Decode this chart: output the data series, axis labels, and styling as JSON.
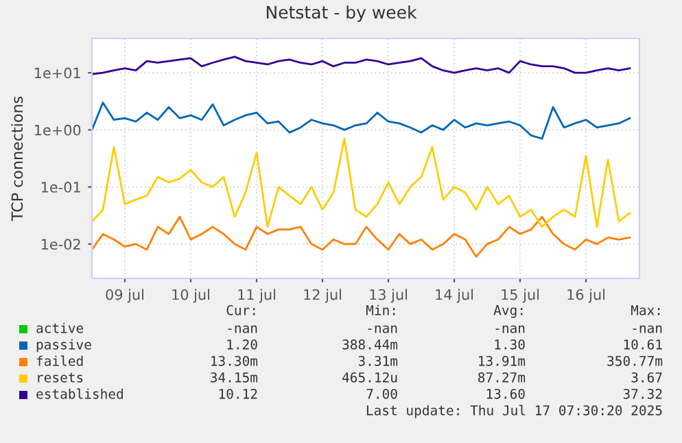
{
  "chart_data": {
    "type": "line",
    "title": "Netstat - by week",
    "ylabel": "TCP connections",
    "log": "y",
    "grid": true,
    "legend": "bottom",
    "marker": "none",
    "line_style": "solid",
    "xlim": [
      "2025-07-09T00:00",
      "2025-07-17T07:30"
    ],
    "ylim": [
      0.0025,
      40
    ],
    "yticks": [
      {
        "value": 0.01,
        "label": "1e-02"
      },
      {
        "value": 0.1,
        "label": "1e-01"
      },
      {
        "value": 1,
        "label": "1e+00"
      },
      {
        "value": 10,
        "label": "1e+01"
      }
    ],
    "xticks": [
      {
        "value": "2025-07-09T12:00",
        "label": "09 jul"
      },
      {
        "value": "2025-07-10T12:00",
        "label": "10 jul"
      },
      {
        "value": "2025-07-11T12:00",
        "label": "11 jul"
      },
      {
        "value": "2025-07-12T12:00",
        "label": "12 jul"
      },
      {
        "value": "2025-07-13T12:00",
        "label": "13 jul"
      },
      {
        "value": "2025-07-14T12:00",
        "label": "14 jul"
      },
      {
        "value": "2025-07-15T12:00",
        "label": "15 jul"
      },
      {
        "value": "2025-07-16T12:00",
        "label": "16 jul"
      }
    ],
    "x": [
      "2025-07-09T00:00",
      "2025-07-09T04:00",
      "2025-07-09T08:00",
      "2025-07-09T12:00",
      "2025-07-09T16:00",
      "2025-07-09T20:00",
      "2025-07-10T00:00",
      "2025-07-10T04:00",
      "2025-07-10T08:00",
      "2025-07-10T12:00",
      "2025-07-10T16:00",
      "2025-07-10T20:00",
      "2025-07-11T00:00",
      "2025-07-11T04:00",
      "2025-07-11T08:00",
      "2025-07-11T12:00",
      "2025-07-11T16:00",
      "2025-07-11T20:00",
      "2025-07-12T00:00",
      "2025-07-12T04:00",
      "2025-07-12T08:00",
      "2025-07-12T12:00",
      "2025-07-12T16:00",
      "2025-07-12T20:00",
      "2025-07-13T00:00",
      "2025-07-13T04:00",
      "2025-07-13T08:00",
      "2025-07-13T12:00",
      "2025-07-13T16:00",
      "2025-07-13T20:00",
      "2025-07-14T00:00",
      "2025-07-14T04:00",
      "2025-07-14T08:00",
      "2025-07-14T12:00",
      "2025-07-14T16:00",
      "2025-07-14T20:00",
      "2025-07-15T00:00",
      "2025-07-15T04:00",
      "2025-07-15T08:00",
      "2025-07-15T12:00",
      "2025-07-15T16:00",
      "2025-07-15T20:00",
      "2025-07-16T00:00",
      "2025-07-16T04:00",
      "2025-07-16T08:00",
      "2025-07-16T12:00",
      "2025-07-16T16:00",
      "2025-07-16T20:00",
      "2025-07-17T00:00",
      "2025-07-17T04:00"
    ],
    "series": [
      {
        "name": "active",
        "color": "#00cc00",
        "values": [
          null,
          null,
          null,
          null,
          null,
          null,
          null,
          null,
          null,
          null,
          null,
          null,
          null,
          null,
          null,
          null,
          null,
          null,
          null,
          null,
          null,
          null,
          null,
          null,
          null,
          null,
          null,
          null,
          null,
          null,
          null,
          null,
          null,
          null,
          null,
          null,
          null,
          null,
          null,
          null,
          null,
          null,
          null,
          null,
          null,
          null,
          null,
          null,
          null,
          null
        ]
      },
      {
        "name": "passive",
        "color": "#0066b3",
        "values": [
          1.0,
          3.0,
          1.5,
          1.6,
          1.4,
          2.0,
          1.5,
          2.5,
          1.6,
          1.8,
          1.5,
          2.8,
          1.2,
          1.5,
          1.8,
          2.0,
          1.3,
          1.4,
          0.9,
          1.1,
          1.5,
          1.3,
          1.2,
          1.0,
          1.2,
          1.3,
          2.0,
          1.4,
          1.3,
          1.1,
          0.9,
          1.2,
          1.0,
          1.5,
          1.1,
          1.3,
          1.2,
          1.3,
          1.4,
          1.2,
          0.8,
          0.7,
          2.5,
          1.1,
          1.3,
          1.5,
          1.1,
          1.2,
          1.3,
          1.6
        ]
      },
      {
        "name": "failed",
        "color": "#ff8000",
        "values": [
          0.008,
          0.015,
          0.012,
          0.009,
          0.01,
          0.008,
          0.02,
          0.015,
          0.03,
          0.012,
          0.015,
          0.02,
          0.015,
          0.01,
          0.008,
          0.02,
          0.015,
          0.018,
          0.018,
          0.02,
          0.01,
          0.008,
          0.012,
          0.01,
          0.01,
          0.02,
          0.012,
          0.008,
          0.015,
          0.01,
          0.012,
          0.008,
          0.01,
          0.015,
          0.012,
          0.006,
          0.01,
          0.012,
          0.02,
          0.015,
          0.018,
          0.03,
          0.015,
          0.01,
          0.008,
          0.012,
          0.01,
          0.013,
          0.012,
          0.013
        ]
      },
      {
        "name": "resets",
        "color": "#ffcc00",
        "values": [
          0.025,
          0.04,
          0.5,
          0.05,
          0.06,
          0.07,
          0.15,
          0.12,
          0.14,
          0.2,
          0.12,
          0.1,
          0.15,
          0.03,
          0.08,
          0.4,
          0.02,
          0.1,
          0.07,
          0.05,
          0.1,
          0.04,
          0.08,
          0.7,
          0.04,
          0.03,
          0.05,
          0.12,
          0.05,
          0.1,
          0.15,
          0.5,
          0.06,
          0.1,
          0.08,
          0.04,
          0.1,
          0.05,
          0.07,
          0.03,
          0.04,
          0.02,
          0.03,
          0.04,
          0.03,
          0.35,
          0.02,
          0.3,
          0.025,
          0.035
        ]
      },
      {
        "name": "established",
        "color": "#330099",
        "values": [
          9.5,
          10,
          11,
          12,
          11,
          16,
          15,
          16,
          17,
          18,
          13,
          15,
          17,
          19,
          16,
          15,
          14,
          16,
          17,
          15,
          14,
          16,
          13,
          15,
          15,
          17,
          16,
          14,
          15,
          16,
          18,
          13,
          11,
          10,
          11,
          12,
          11,
          12,
          10,
          16,
          14,
          13,
          13,
          12,
          10,
          10,
          11,
          12,
          11,
          12
        ]
      }
    ],
    "annotations": [
      "Cur:",
      "Min:",
      "Avg:",
      "Max:",
      "-nan",
      "-nan",
      "-nan",
      "-nan",
      "1.20",
      "388.44m",
      "1.30",
      "10.61",
      "13.30m",
      "3.31m",
      "13.91m",
      "350.77m",
      "34.15m",
      "465.12u",
      "87.27m",
      "3.67",
      "10.12",
      "7.00",
      "13.60",
      "37.32",
      "Last update: Thu Jul 17 07:30:20 2025"
    ]
  }
}
